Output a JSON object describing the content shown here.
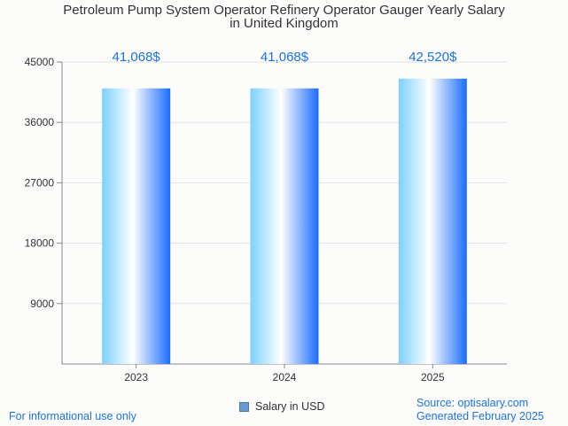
{
  "chart_data": {
    "type": "bar",
    "title_lines": [
      "Petroleum Pump System Operator Refinery Operator Gauger Yearly Salary",
      "in United Kingdom"
    ],
    "categories": [
      "2023",
      "2024",
      "2025"
    ],
    "values": [
      41068,
      41068,
      42520
    ],
    "value_labels": [
      "41,068$",
      "41,068$",
      "42,520$"
    ],
    "y_ticks": [
      9000,
      18000,
      27000,
      36000,
      45000
    ],
    "ylim": [
      0,
      45000
    ],
    "legend": "Salary in USD",
    "grid": true
  },
  "footer": {
    "left": "For informational use only",
    "source": "Source: optisalary.com",
    "generated": "Generated February 2025"
  },
  "colors": {
    "bar_light": "#ffffff",
    "bar_mid": "#7dd0ff",
    "bar_dark": "#1a6cff",
    "label": "#1a73e8",
    "grid": "#e4e4e4"
  }
}
